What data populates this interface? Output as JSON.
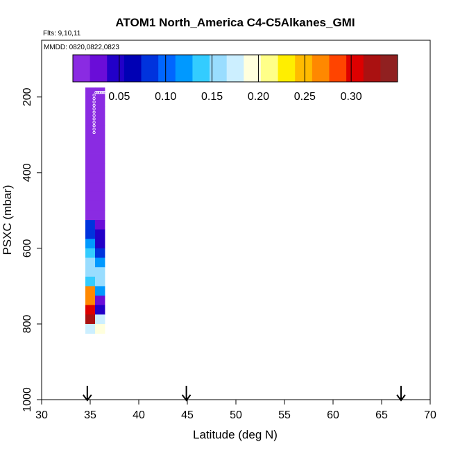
{
  "chart_data": {
    "type": "heatmap",
    "title": "ATOM1 North_America C4-C5Alkanes_GMI",
    "flights_label": "Flts: 9,10,11",
    "dates_label": "MMDD: 0820,0822,0823",
    "xlabel": "Latitude (deg N)",
    "ylabel": "PSXC (mbar)",
    "xlim": [
      30,
      70
    ],
    "ylim": [
      1000,
      50
    ],
    "y_reversed": true,
    "x_ticks": [
      "30",
      "35",
      "40",
      "45",
      "50",
      "55",
      "60",
      "65",
      "70"
    ],
    "y_ticks": [
      "200",
      "400",
      "600",
      "800",
      "1000"
    ],
    "colorbar": {
      "min": 0.0,
      "max": 0.35,
      "ticks": [
        "0.05",
        "0.10",
        "0.15",
        "0.20",
        "0.25",
        "0.30"
      ],
      "colors": [
        "#8a2be2",
        "#6a0dd8",
        "#2200c8",
        "#0000b4",
        "#0033dd",
        "#0066ff",
        "#0099ff",
        "#33ccff",
        "#99ddff",
        "#ccefff",
        "#ffffdd",
        "#ffff88",
        "#ffee00",
        "#ffbb00",
        "#ff8800",
        "#ff4400",
        "#dd0000",
        "#aa1111",
        "#902020"
      ]
    },
    "arrows_at_latitude": [
      34.7,
      44.9,
      67.0
    ],
    "cell_size": {
      "dlat": 1.0,
      "dp": 25
    },
    "columns": [
      {
        "lat": 35,
        "p_top": 175,
        "values": [
          0.005,
          0.004,
          0.005,
          0.006,
          0.005,
          0.004,
          0.005,
          0.005,
          0.004,
          0.005,
          0.004,
          0.005,
          0.006,
          0.006,
          0.08,
          0.09,
          0.12,
          0.13,
          0.15,
          0.15,
          0.14,
          0.26,
          0.26,
          0.3,
          0.33,
          0.18
        ]
      },
      {
        "lat": 36,
        "p_top": 175,
        "values": [
          0.005,
          0.004,
          0.005,
          0.006,
          0.005,
          0.004,
          0.005,
          0.005,
          0.004,
          0.005,
          0.004,
          0.005,
          0.006,
          0.006,
          0.03,
          0.04,
          0.05,
          0.08,
          0.12,
          0.15,
          0.16,
          0.12,
          0.03,
          0.04,
          0.17,
          0.2
        ]
      }
    ],
    "grid": false
  }
}
